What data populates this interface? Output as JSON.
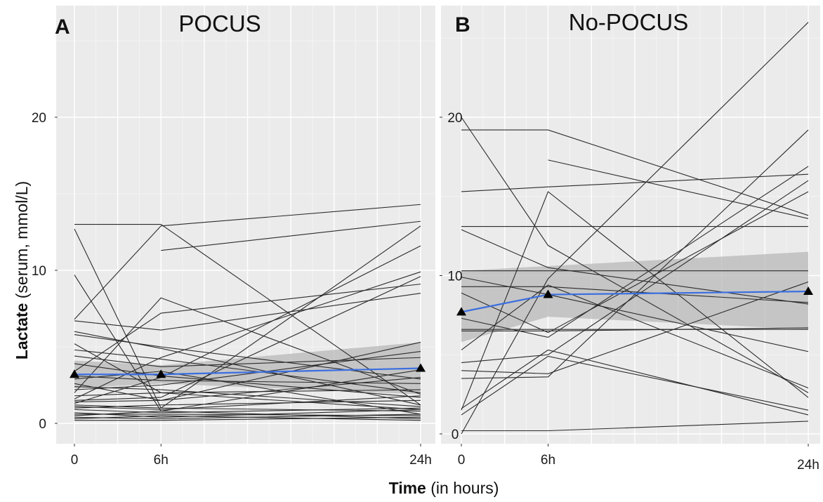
{
  "figure": {
    "y_axis_label_bold": "Lactate",
    "y_axis_label_rest": "(serum, mmol/L)",
    "x_axis_label_bold": "Time",
    "x_axis_label_rest": "(in hours)"
  },
  "chart_data": [
    {
      "type": "line",
      "panel_tag": "A",
      "title": "POCUS",
      "xlabel": "Time (in hours)",
      "ylabel": "Lactate (serum, mmol/L)",
      "xlim": [
        0,
        24
      ],
      "ylim": [
        -1,
        25
      ],
      "x_ticks": [
        0,
        6,
        24
      ],
      "x_tick_labels": [
        "0",
        "6h",
        "24h"
      ],
      "y_ticks": [
        0,
        10,
        20
      ],
      "y_tick_labels": [
        "0",
        "10",
        "20"
      ],
      "grid": true,
      "mean_line": {
        "color": "#3b6fe0",
        "x": [
          0,
          6,
          24
        ],
        "y": [
          3.2,
          3.2,
          3.6
        ],
        "band_lower": [
          2.3,
          2.6,
          1.9
        ],
        "band_upper": [
          4.1,
          3.8,
          5.3
        ],
        "marker": "triangle"
      },
      "series": [
        {
          "x": [
            0,
            6,
            24
          ],
          "y": [
            13.0,
            13.0,
            1.2
          ]
        },
        {
          "x": [
            0,
            6,
            24
          ],
          "y": [
            12.7,
            1.0,
            0.8
          ]
        },
        {
          "x": [
            6,
            24
          ],
          "y": [
            11.3,
            13.2
          ]
        },
        {
          "x": [
            0,
            6,
            24
          ],
          "y": [
            6.8,
            12.9,
            14.3
          ]
        },
        {
          "x": [
            0,
            6,
            24
          ],
          "y": [
            9.7,
            0.8,
            3.5
          ]
        },
        {
          "x": [
            0,
            6,
            24
          ],
          "y": [
            6.7,
            6.1,
            8.5
          ]
        },
        {
          "x": [
            0,
            6,
            24
          ],
          "y": [
            6.0,
            4.9,
            1.2
          ]
        },
        {
          "x": [
            0,
            6,
            24
          ],
          "y": [
            5.8,
            5.0,
            2.9
          ]
        },
        {
          "x": [
            0,
            6,
            24
          ],
          "y": [
            2.0,
            8.2,
            1.9
          ]
        },
        {
          "x": [
            0,
            6,
            24
          ],
          "y": [
            1.6,
            4.3,
            9.9
          ]
        },
        {
          "x": [
            0,
            6,
            24
          ],
          "y": [
            1.2,
            1.0,
            12.9
          ]
        },
        {
          "x": [
            0,
            6,
            24
          ],
          "y": [
            3.4,
            7.2,
            9.1
          ]
        },
        {
          "x": [
            0,
            6,
            24
          ],
          "y": [
            1.3,
            3.0,
            11.6
          ]
        },
        {
          "x": [
            0,
            6,
            24
          ],
          "y": [
            1.5,
            1.7,
            9.6
          ]
        },
        {
          "x": [
            0,
            6,
            24
          ],
          "y": [
            2.6,
            1.5,
            5.3
          ]
        },
        {
          "x": [
            0,
            6,
            24
          ],
          "y": [
            2.2,
            2.5,
            4.7
          ]
        },
        {
          "x": [
            0,
            6,
            24
          ],
          "y": [
            4.4,
            3.7,
            4.3
          ]
        },
        {
          "x": [
            0,
            6,
            24
          ],
          "y": [
            3.9,
            3.1,
            1.7
          ]
        },
        {
          "x": [
            0,
            6,
            24
          ],
          "y": [
            2.9,
            3.4,
            0.6
          ]
        },
        {
          "x": [
            0,
            6,
            24
          ],
          "y": [
            1.8,
            2.0,
            2.2
          ]
        },
        {
          "x": [
            0,
            6,
            24
          ],
          "y": [
            1.0,
            1.2,
            1.5
          ]
        },
        {
          "x": [
            0,
            6,
            24
          ],
          "y": [
            0.9,
            0.7,
            1.0
          ]
        },
        {
          "x": [
            0,
            6,
            24
          ],
          "y": [
            0.6,
            0.6,
            0.5
          ]
        },
        {
          "x": [
            0,
            6,
            24
          ],
          "y": [
            0.5,
            0.8,
            0.3
          ]
        },
        {
          "x": [
            0,
            6,
            24
          ],
          "y": [
            0.4,
            0.3,
            0.6
          ]
        },
        {
          "x": [
            0,
            6,
            24
          ],
          "y": [
            0.3,
            0.5,
            0.2
          ]
        },
        {
          "x": [
            0,
            6,
            24
          ],
          "y": [
            0.2,
            0.2,
            0.4
          ]
        },
        {
          "x": [
            0,
            6,
            24
          ],
          "y": [
            0.7,
            0.4,
            0.9
          ]
        },
        {
          "x": [
            0,
            6,
            24
          ],
          "y": [
            1.1,
            0.9,
            1.8
          ]
        },
        {
          "x": [
            0,
            6,
            24
          ],
          "y": [
            2.4,
            2.2,
            1.1
          ]
        },
        {
          "x": [
            0,
            6,
            24
          ],
          "y": [
            3.1,
            2.8,
            2.6
          ]
        },
        {
          "x": [
            0,
            6,
            24
          ],
          "y": [
            1.4,
            1.5,
            3.0
          ]
        },
        {
          "x": [
            0,
            6,
            24
          ],
          "y": [
            5.2,
            2.0,
            0.9
          ]
        },
        {
          "x": [
            0,
            6,
            24
          ],
          "y": [
            4.8,
            4.2,
            2.0
          ]
        }
      ]
    },
    {
      "type": "line",
      "panel_tag": "B",
      "title": "No-POCUS",
      "xlabel": "Time (in hours)",
      "ylabel": "Lactate (serum, mmol/L)",
      "xlim": [
        0,
        24
      ],
      "ylim": [
        -1,
        25
      ],
      "x_ticks": [
        0,
        6,
        24
      ],
      "x_tick_labels": [
        "0",
        "6h",
        "24h"
      ],
      "y_ticks": [
        0,
        10,
        20
      ],
      "y_tick_labels": [
        "0",
        "10",
        "20"
      ],
      "grid": true,
      "mean_line": {
        "color": "#3b6fe0",
        "x": [
          0,
          6,
          24
        ],
        "y": [
          7.7,
          8.8,
          9.0
        ],
        "band_lower": [
          5.8,
          7.4,
          6.6
        ],
        "band_upper": [
          10.3,
          10.6,
          11.5
        ],
        "marker": "triangle"
      },
      "series": [
        {
          "x": [
            0,
            6,
            24
          ],
          "y": [
            20.0,
            11.9,
            2.6
          ]
        },
        {
          "x": [
            0,
            6,
            24
          ],
          "y": [
            19.2,
            19.2,
            13.8
          ]
        },
        {
          "x": [
            6,
            24
          ],
          "y": [
            17.3,
            13.6
          ]
        },
        {
          "x": [
            0,
            6,
            24
          ],
          "y": [
            15.3,
            15.6,
            16.4
          ]
        },
        {
          "x": [
            0,
            6,
            24
          ],
          "y": [
            13.1,
            13.1,
            13.1
          ]
        },
        {
          "x": [
            0,
            6,
            24
          ],
          "y": [
            12.9,
            10.5,
            8.2
          ]
        },
        {
          "x": [
            0,
            6,
            24
          ],
          "y": [
            9.9,
            8.8,
            5.2
          ]
        },
        {
          "x": [
            0,
            6,
            24
          ],
          "y": [
            10.3,
            10.3,
            10.3
          ]
        },
        {
          "x": [
            0,
            6,
            24
          ],
          "y": [
            9.3,
            9.3,
            8.3
          ]
        },
        {
          "x": [
            0,
            6,
            24
          ],
          "y": [
            6.6,
            6.6,
            6.6
          ]
        },
        {
          "x": [
            0,
            6,
            24
          ],
          "y": [
            6.5,
            6.5,
            6.7
          ]
        },
        {
          "x": [
            0,
            6,
            24
          ],
          "y": [
            4.5,
            5.0,
            16.0
          ]
        },
        {
          "x": [
            0,
            6,
            24
          ],
          "y": [
            3.5,
            3.6,
            19.2
          ]
        },
        {
          "x": [
            0,
            6,
            24
          ],
          "y": [
            1.5,
            15.3,
            2.3
          ]
        },
        {
          "x": [
            0,
            6,
            24
          ],
          "y": [
            1.6,
            5.3,
            1.2
          ]
        },
        {
          "x": [
            0,
            6,
            24
          ],
          "y": [
            1.2,
            4.9,
            1.5
          ]
        },
        {
          "x": [
            0,
            6,
            24
          ],
          "y": [
            0.0,
            9.8,
            26.0
          ]
        },
        {
          "x": [
            0,
            6,
            24
          ],
          "y": [
            0.2,
            0.2,
            0.8
          ]
        },
        {
          "x": [
            0,
            6,
            24
          ],
          "y": [
            7.3,
            6.1,
            16.9
          ]
        },
        {
          "x": [
            0,
            6,
            24
          ],
          "y": [
            5.3,
            9.4,
            2.9
          ]
        },
        {
          "x": [
            0,
            6,
            24
          ],
          "y": [
            4.0,
            3.8,
            9.6
          ]
        },
        {
          "x": [
            0,
            6,
            24
          ],
          "y": [
            8.9,
            6.4,
            15.3
          ]
        }
      ]
    }
  ]
}
